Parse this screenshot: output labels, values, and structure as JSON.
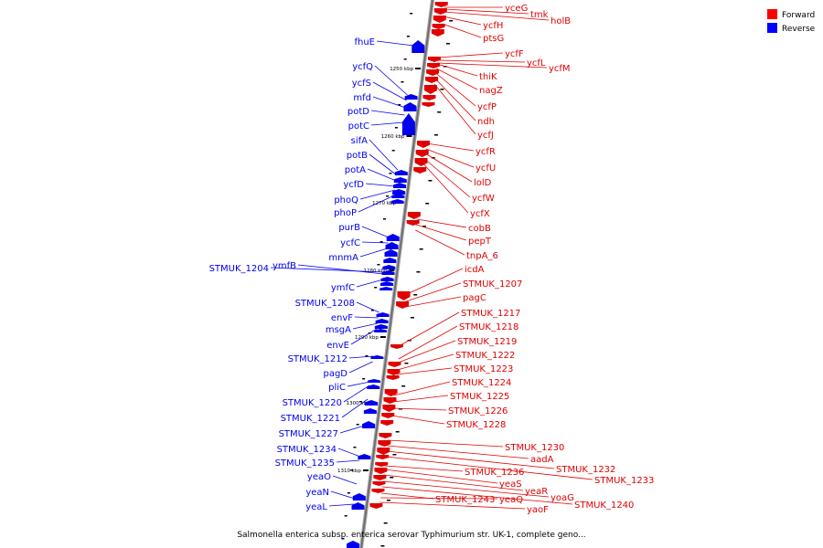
{
  "caption": "Salmonella enterica subsp. enterica serovar Typhimurium str. UK-1, complete geno...",
  "legend": [
    {
      "label": "Forward",
      "color": "#ff0000"
    },
    {
      "label": "Reverse",
      "color": "#0000ff"
    }
  ],
  "scale_labels": [
    "1250 kbp",
    "1260 kbp",
    "1270 kbp",
    "1280 kbp",
    "1290 kbp",
    "1300 kbp",
    "1310 kbp"
  ],
  "forward_genes": [
    "yceG",
    "tmk",
    "holB",
    "ycfH",
    "ptsG",
    "ycfF",
    "ycfL",
    "ycfM",
    "thiK",
    "nagZ",
    "ycfP",
    "ndh",
    "ycfJ",
    "ycfR",
    "ycfU",
    "lolD",
    "ycfW",
    "ycfX",
    "cobB",
    "pepT",
    "tnpA_6",
    "icdA",
    "STMUK_1207",
    "pagC",
    "STMUK_1217",
    "STMUK_1218",
    "STMUK_1219",
    "STMUK_1222",
    "STMUK_1223",
    "STMUK_1224",
    "STMUK_1225",
    "STMUK_1226",
    "STMUK_1228",
    "STMUK_1230",
    "aadA",
    "STMUK_1232",
    "STMUK_1233",
    "STMUK_1236",
    "yeaS",
    "yeaR",
    "yoaG",
    "STMUK_1240",
    "STMUK_1243",
    "yeaQ",
    "yaoF"
  ],
  "reverse_genes": [
    "fhuE",
    "ycfQ",
    "ycfS",
    "mfd",
    "potD",
    "potC",
    "sifA",
    "potB",
    "potA",
    "ycfD",
    "phoQ",
    "phoP",
    "purB",
    "ycfC",
    "mnmA",
    "STMUK_1204",
    "ymfB",
    "ymfC",
    "STMUK_1208",
    "envF",
    "msgA",
    "envE",
    "STMUK_1212",
    "pagD",
    "pliC",
    "STMUK_1220",
    "STMUK_1221",
    "STMUK_1227",
    "STMUK_1234",
    "STMUK_1235",
    "yeaO",
    "yeaN",
    "yeaL"
  ],
  "colors": {
    "forward": "#e00000",
    "reverse": "#0000ee",
    "backbone": "#888888",
    "tick": "#000000"
  }
}
